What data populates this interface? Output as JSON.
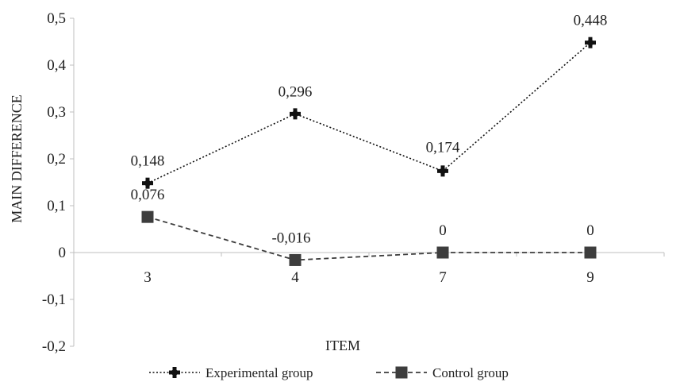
{
  "chart_data": {
    "type": "line",
    "title": "",
    "xlabel": "ITEM",
    "ylabel": "MAIN DIFFERENCE",
    "categories": [
      "3",
      "4",
      "7",
      "9"
    ],
    "ylim": [
      -0.2,
      0.5
    ],
    "yticks": [
      0.5,
      0.4,
      0.3,
      0.2,
      0.1,
      0,
      -0.1,
      -0.2
    ],
    "ytick_labels": [
      "0,5",
      "0,4",
      "0,3",
      "0,2",
      "0,1",
      "0",
      "-0,1",
      "-0,2"
    ],
    "grid": false,
    "legend_position": "bottom",
    "series": [
      {
        "name": "Experimental group",
        "values": [
          0.148,
          0.296,
          0.174,
          0.448
        ],
        "labels": [
          "0,148",
          "0,296",
          "0,174",
          "0,448"
        ],
        "line_style": "dotted",
        "marker": "cross",
        "color": "#111111"
      },
      {
        "name": "Control group",
        "values": [
          0.076,
          -0.016,
          0,
          0
        ],
        "labels": [
          "0,076",
          "-0,016",
          "0",
          "0"
        ],
        "line_style": "dashed",
        "marker": "square",
        "color": "#3d3d3d"
      }
    ]
  }
}
